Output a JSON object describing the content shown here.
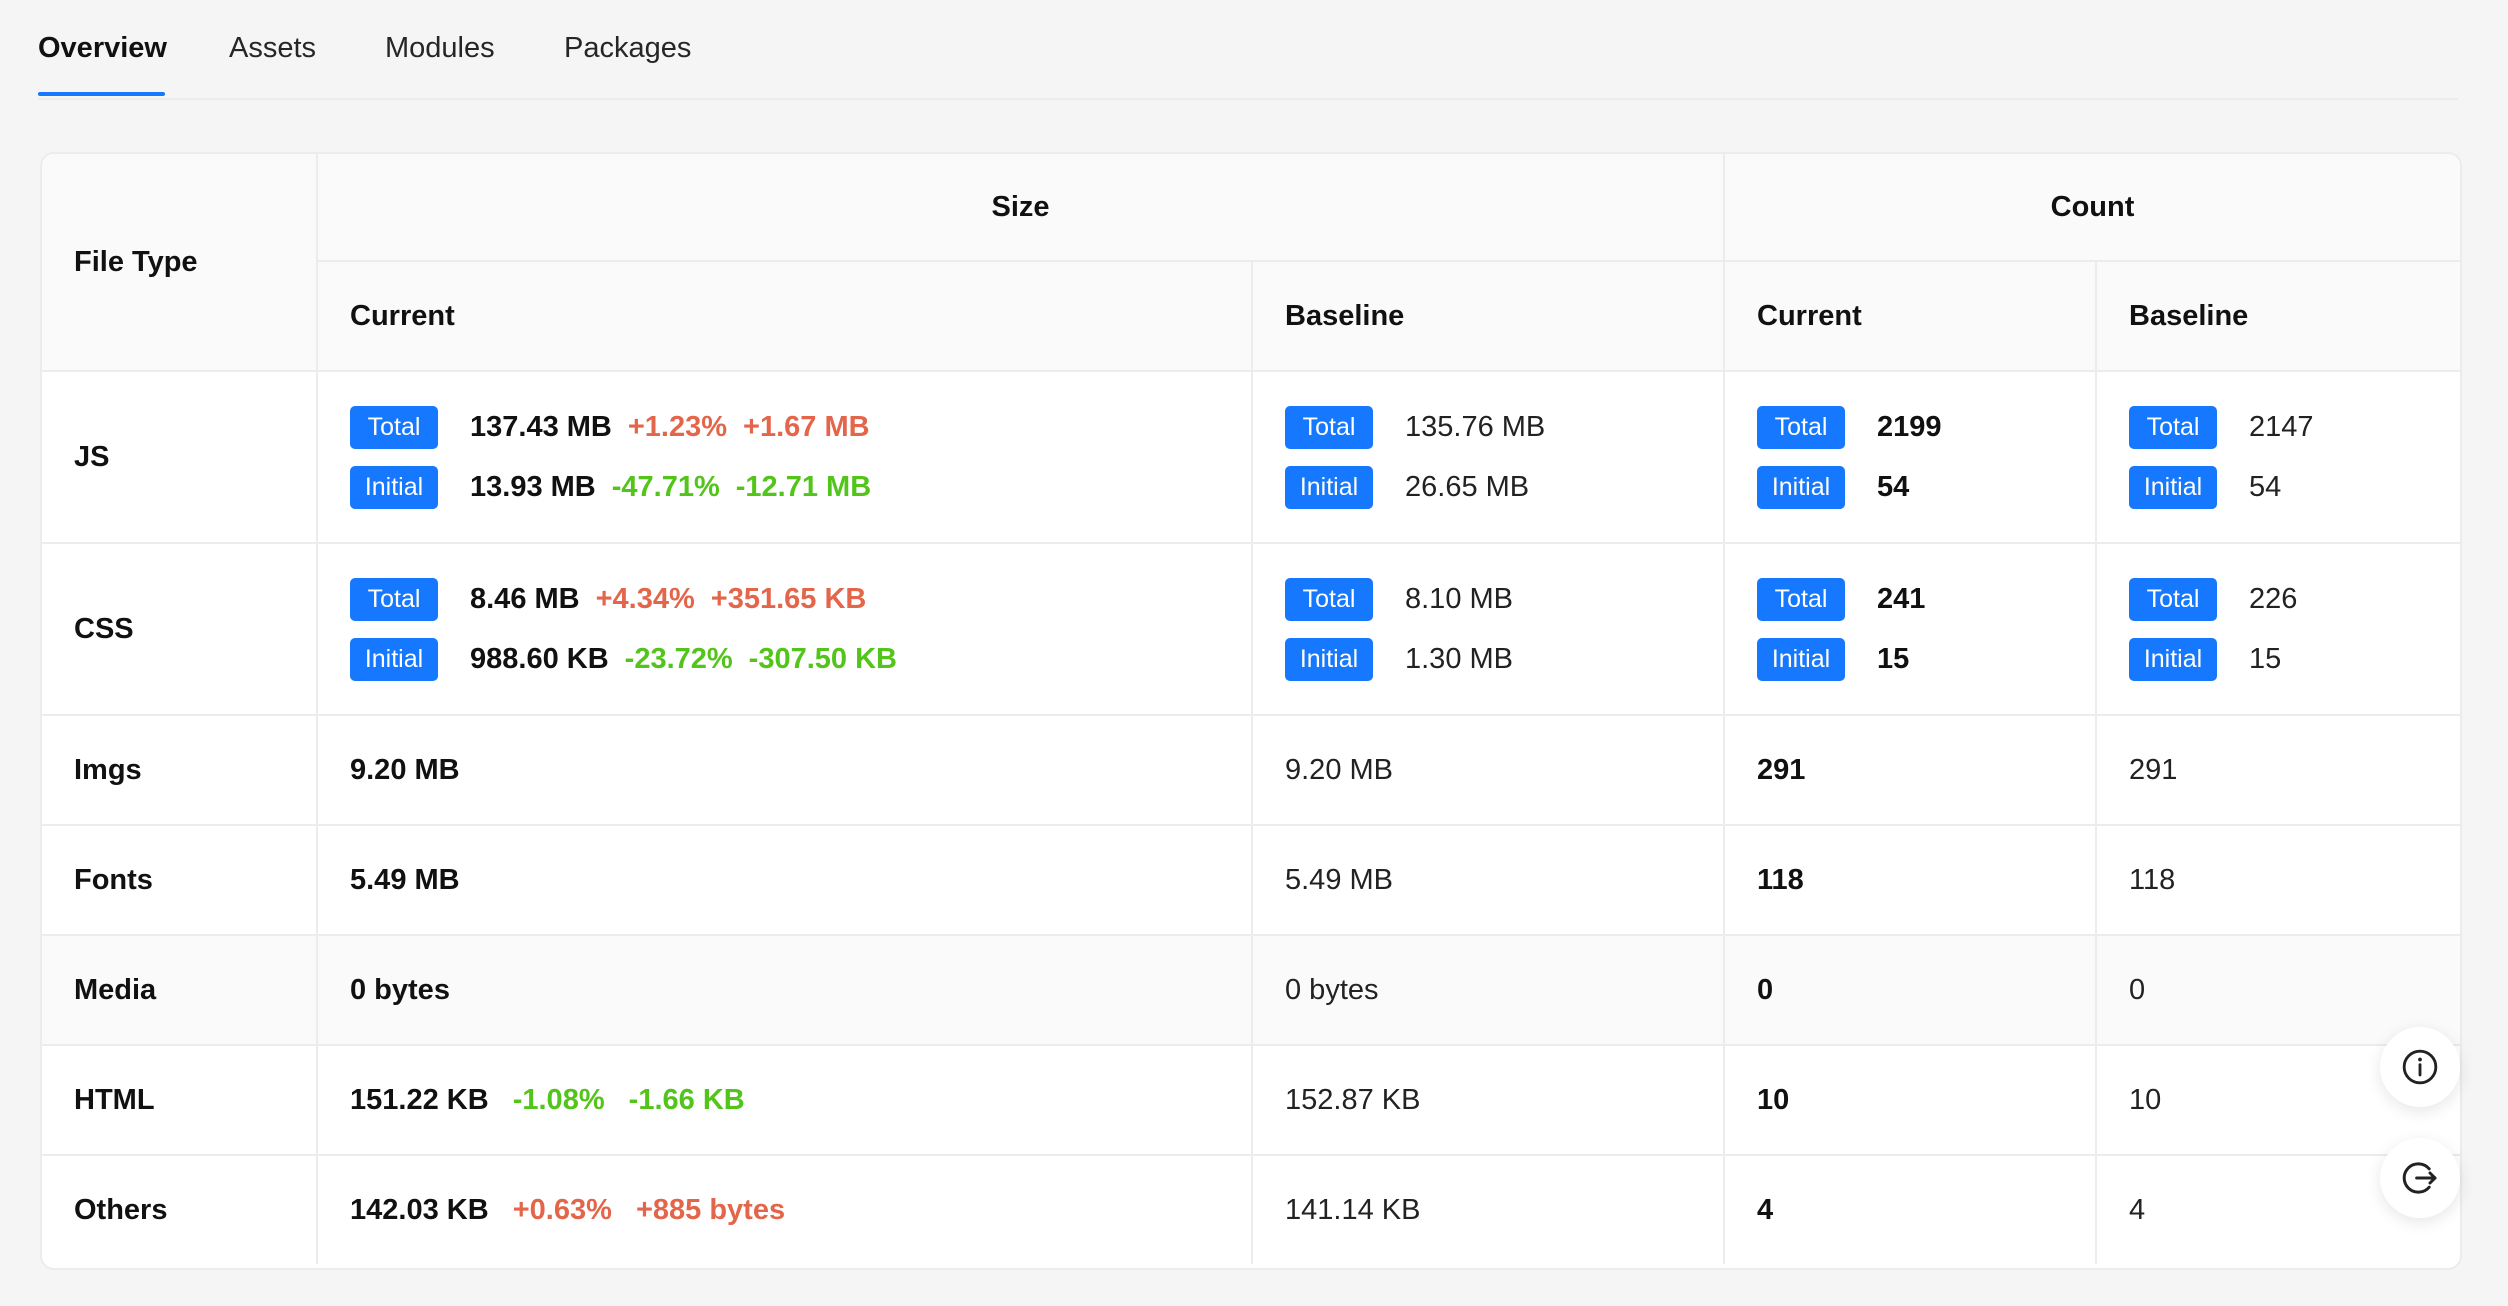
{
  "tabs": [
    {
      "label": "Overview",
      "active": true
    },
    {
      "label": "Assets",
      "active": false
    },
    {
      "label": "Modules",
      "active": false
    },
    {
      "label": "Packages",
      "active": false
    }
  ],
  "table": {
    "file_type_header": "File Type",
    "size_header": "Size",
    "count_header": "Count",
    "current_header": "Current",
    "baseline_header": "Baseline",
    "tag_total": "Total",
    "tag_initial": "Initial",
    "rows": {
      "js": {
        "name": "JS",
        "size_current": {
          "total": {
            "value": "137.43 MB",
            "pct": "+1.23%",
            "diff": "+1.67 MB"
          },
          "initial": {
            "value": "13.93 MB",
            "pct": "-47.71%",
            "diff": "-12.71 MB"
          }
        },
        "size_baseline": {
          "total": "135.76 MB",
          "initial": "26.65 MB"
        },
        "count_current": {
          "total": "2199",
          "initial": "54"
        },
        "count_baseline": {
          "total": "2147",
          "initial": "54"
        }
      },
      "css": {
        "name": "CSS",
        "size_current": {
          "total": {
            "value": "8.46 MB",
            "pct": "+4.34%",
            "diff": "+351.65 KB"
          },
          "initial": {
            "value": "988.60 KB",
            "pct": "-23.72%",
            "diff": "-307.50 KB"
          }
        },
        "size_baseline": {
          "total": "8.10 MB",
          "initial": "1.30 MB"
        },
        "count_current": {
          "total": "241",
          "initial": "15"
        },
        "count_baseline": {
          "total": "226",
          "initial": "15"
        }
      },
      "imgs": {
        "name": "Imgs",
        "size_current": "9.20 MB",
        "size_baseline": "9.20 MB",
        "count_current": "291",
        "count_baseline": "291"
      },
      "fonts": {
        "name": "Fonts",
        "size_current": "5.49 MB",
        "size_baseline": "5.49 MB",
        "count_current": "118",
        "count_baseline": "118"
      },
      "media": {
        "name": "Media",
        "size_current": "0 bytes",
        "size_baseline": "0 bytes",
        "count_current": "0",
        "count_baseline": "0"
      },
      "html": {
        "name": "HTML",
        "size_current": "151.22 KB",
        "pct": "-1.08%",
        "diff": "-1.66 KB",
        "size_baseline": "152.87 KB",
        "count_current": "10",
        "count_baseline": "10"
      },
      "others": {
        "name": "Others",
        "size_current": "142.03 KB",
        "pct": "+0.63%",
        "diff": "+885 bytes",
        "size_baseline": "141.14 KB",
        "count_current": "4",
        "count_baseline": "4"
      }
    }
  },
  "colors": {
    "accent": "#1677ff",
    "increase": "#e4664a",
    "decrease": "#52c41a"
  },
  "floating_buttons": [
    {
      "icon": "info-icon"
    },
    {
      "icon": "logout-icon"
    }
  ]
}
